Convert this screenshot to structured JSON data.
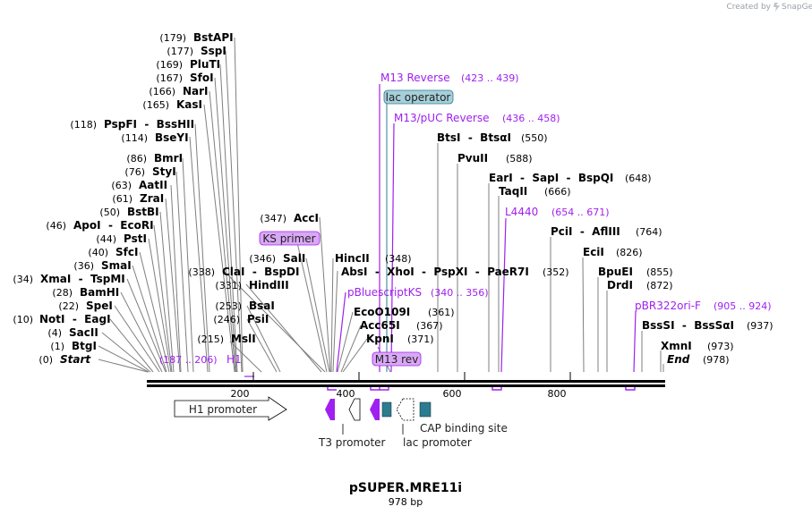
{
  "credit": {
    "text": "Created by",
    "brand": "SnapGene"
  },
  "map": {
    "name": "pSUPER.MRE11i",
    "length_label": "978 bp",
    "length_bp": 978,
    "ruler_ticks": [
      "200",
      "400",
      "600",
      "800"
    ]
  },
  "enzymes": [
    {
      "name": "Start",
      "pos": "(0)",
      "endpoint": true
    },
    {
      "name": "BtgI",
      "pos": "(1)"
    },
    {
      "name": "SacII",
      "pos": "(4)"
    },
    {
      "name": "NotI - EagI",
      "pos": "(10)"
    },
    {
      "name": "SpeI",
      "pos": "(22)"
    },
    {
      "name": "BamHI",
      "pos": "(28)"
    },
    {
      "name": "XmaI - TspMI",
      "pos": "(34)"
    },
    {
      "name": "SmaI",
      "pos": "(36)"
    },
    {
      "name": "SfcI",
      "pos": "(40)"
    },
    {
      "name": "PstI",
      "pos": "(44)"
    },
    {
      "name": "ApoI - EcoRI",
      "pos": "(46)"
    },
    {
      "name": "BstBI",
      "pos": "(50)"
    },
    {
      "name": "ZraI",
      "pos": "(61)"
    },
    {
      "name": "AatII",
      "pos": "(63)"
    },
    {
      "name": "StyI",
      "pos": "(76)"
    },
    {
      "name": "BmrI",
      "pos": "(86)"
    },
    {
      "name": "BseYI",
      "pos": "(114)"
    },
    {
      "name": "PspFI - BssHII",
      "pos": "(118)"
    },
    {
      "name": "KasI",
      "pos": "(165)"
    },
    {
      "name": "NarI",
      "pos": "(166)"
    },
    {
      "name": "SfoI",
      "pos": "(167)"
    },
    {
      "name": "PluTI",
      "pos": "(169)"
    },
    {
      "name": "SspI",
      "pos": "(177)"
    },
    {
      "name": "BstAPI",
      "pos": "(179)"
    },
    {
      "name": "MslI",
      "pos": "(215)"
    },
    {
      "name": "PsiI",
      "pos": "(246)"
    },
    {
      "name": "BsaI",
      "pos": "(253)"
    },
    {
      "name": "HindIII",
      "pos": "(331)"
    },
    {
      "name": "ClaI - BspDI",
      "pos": "(338)"
    },
    {
      "name": "SalI",
      "pos": "(346)"
    },
    {
      "name": "AccI",
      "pos": "(347)"
    },
    {
      "name": "HincII",
      "pos": "(348)"
    },
    {
      "name": "AbsI - XhoI - PspXI - PaeR7I",
      "pos": "(352)"
    },
    {
      "name": "EcoO109I",
      "pos": "(361)"
    },
    {
      "name": "Acc65I",
      "pos": "(367)"
    },
    {
      "name": "KpnI",
      "pos": "(371)"
    },
    {
      "name": "BtsI - BtsαI",
      "pos": "(550)"
    },
    {
      "name": "PvuII",
      "pos": "(588)"
    },
    {
      "name": "EarI - SapI - BspQI",
      "pos": "(648)"
    },
    {
      "name": "TaqII",
      "pos": "(666)"
    },
    {
      "name": "PciI - AflIII",
      "pos": "(764)"
    },
    {
      "name": "EciI",
      "pos": "(826)"
    },
    {
      "name": "BpuEI",
      "pos": "(855)"
    },
    {
      "name": "DrdI",
      "pos": "(872)"
    },
    {
      "name": "BssSI - BssSαI",
      "pos": "(937)"
    },
    {
      "name": "XmnI",
      "pos": "(973)"
    },
    {
      "name": "End",
      "pos": "(978)",
      "endpoint": true
    }
  ],
  "features": [
    {
      "name": "M13 Reverse",
      "range": "(423 .. 439)"
    },
    {
      "name": "lac operator",
      "range": ""
    },
    {
      "name": "M13/pUC Reverse",
      "range": "(436 .. 458)"
    },
    {
      "name": "KS primer",
      "range": ""
    },
    {
      "name": "L4440",
      "range": "(654 .. 671)"
    },
    {
      "name": "pBluescriptKS",
      "range": "(340 .. 356)"
    },
    {
      "name": "pBR322ori-F",
      "range": "(905 .. 924)"
    },
    {
      "name": "H1",
      "range": "(187 .. 206)"
    },
    {
      "name": "M13 rev",
      "range": ""
    }
  ],
  "lower_features": {
    "h1_promoter": "H1 promoter",
    "t3_promoter": "T3 promoter",
    "lac_promoter": "lac promoter",
    "cap_site": "CAP binding site"
  },
  "colors": {
    "primer": "#a020f0",
    "primer_fill": "#d9a8f5",
    "operator_fill": "#a6cfd9",
    "protein_bind": "#2b7c8e",
    "backbone": "#000000",
    "leader": "#7f7f7f"
  }
}
